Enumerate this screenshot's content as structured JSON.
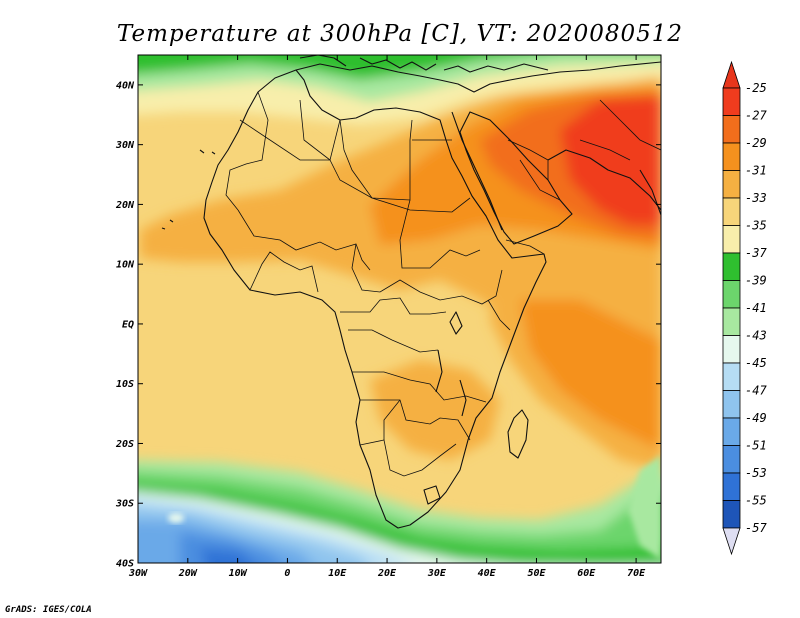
{
  "title": "Temperature at 300hPa [C], VT: 2020080512",
  "credit": "GrADS: IGES/COLA",
  "map": {
    "lon_range": [
      -30,
      75
    ],
    "lat_range": [
      -40,
      45
    ],
    "x_ticks": [
      "30W",
      "20W",
      "10W",
      "0",
      "10E",
      "20E",
      "30E",
      "40E",
      "50E",
      "60E",
      "70E"
    ],
    "x_tick_values": [
      -30,
      -20,
      -10,
      0,
      10,
      20,
      30,
      40,
      50,
      60,
      70
    ],
    "y_ticks": [
      "40N",
      "30N",
      "20N",
      "10N",
      "EQ",
      "10S",
      "20S",
      "30S",
      "40S"
    ],
    "y_tick_values": [
      40,
      30,
      20,
      10,
      0,
      -10,
      -20,
      -30,
      -40
    ]
  },
  "colorbar": {
    "labels": [
      "-25",
      "-27",
      "-29",
      "-31",
      "-33",
      "-35",
      "-37",
      "-39",
      "-41",
      "-43",
      "-45",
      "-47",
      "-49",
      "-51",
      "-53",
      "-55",
      "-57"
    ],
    "colors": [
      "#f03c1e",
      "#f26e1c",
      "#f5911e",
      "#f5b042",
      "#f7d57a",
      "#f8eeab",
      "#2fbf2f",
      "#6cd56c",
      "#a8e8a0",
      "#e6f8ee",
      "#b6ddf4",
      "#8fc4ee",
      "#6aa9e8",
      "#4b8ee0",
      "#2f72d6",
      "#1e55b8",
      "#0c1f7a"
    ],
    "top_arrow_color": "#e8361c",
    "bottom_arrow_color": "#dedef2"
  }
}
